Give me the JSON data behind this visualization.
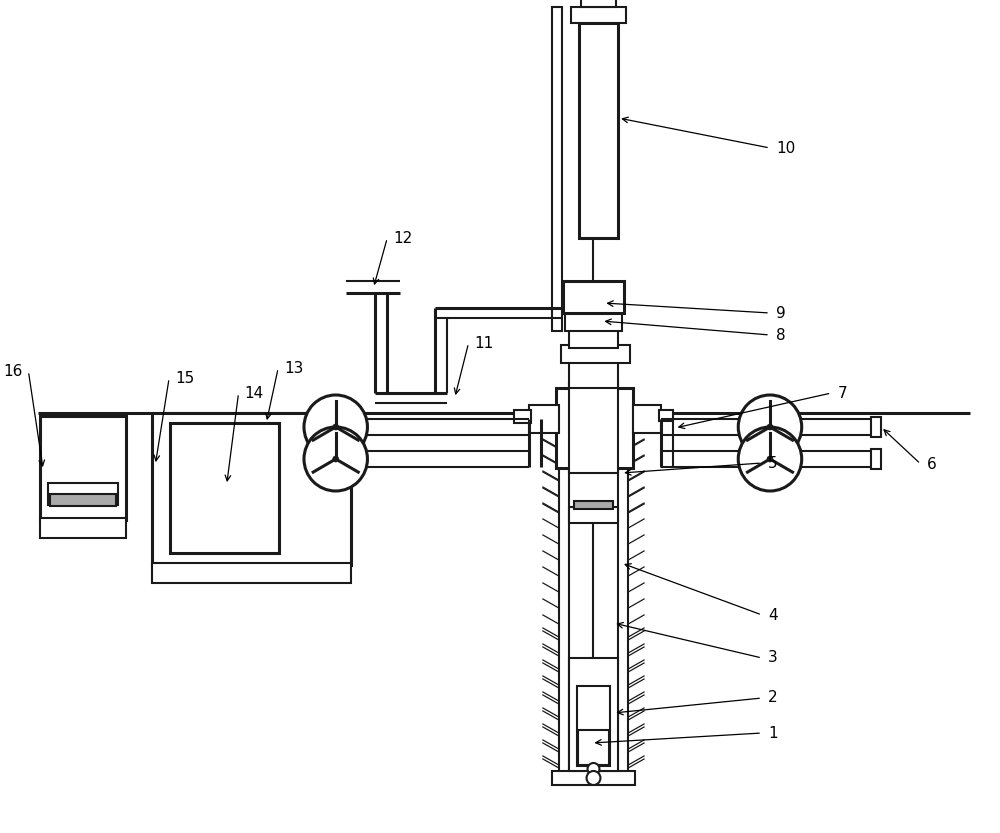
{
  "bg_color": "#ffffff",
  "lc": "#1a1a1a",
  "lw": 1.5,
  "lw2": 2.2
}
